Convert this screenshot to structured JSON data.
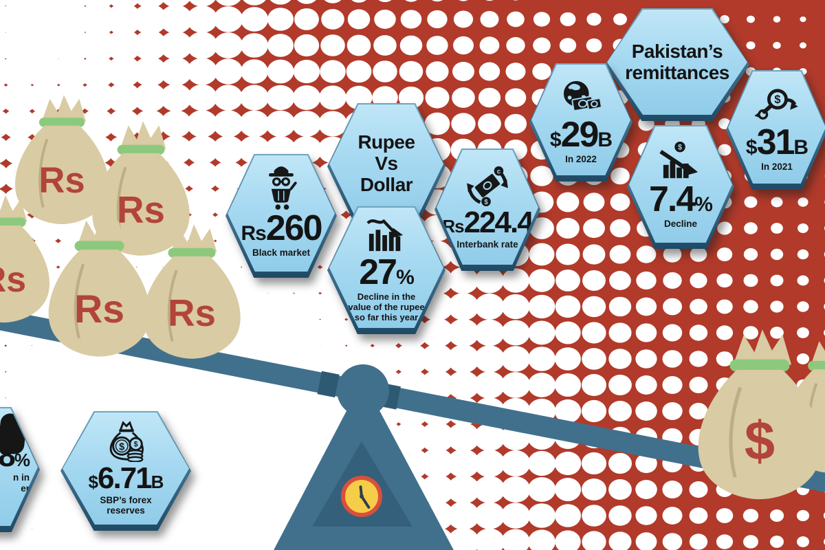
{
  "colors": {
    "background_red": "#b13a2a",
    "dot_white": "#ffffff",
    "hex_blue": "#a6d9f1",
    "beam_blue": "#41708d",
    "bag_tan": "#d9cba3",
    "bag_text_red": "#b2443a",
    "tie_green": "#8cc97d",
    "clock_face_yellow": "#f6cd48",
    "clock_ring_red": "#d94f3c",
    "text_black": "#141414"
  },
  "clusters": {
    "remittances": {
      "title": "Pakistan’s\nremittances",
      "tiles": [
        {
          "icon": "globe-banknotes-icon",
          "prefix": "$",
          "value": "29",
          "suffix": "B",
          "label": "In 2022"
        },
        {
          "icon": "declining-chart-dollar-icon",
          "prefix": "",
          "value": "7.4",
          "suffix": "%",
          "label": "Decline"
        },
        {
          "icon": "magnifier-dollar-icon",
          "prefix": "$",
          "value": "31",
          "suffix": "B",
          "label": "In 2021"
        }
      ]
    },
    "rupee_vs_dollar": {
      "title": "Rupee\nVs\nDollar",
      "tiles": [
        {
          "icon": "incognito-cart-icon",
          "prefix": "Rs",
          "value": "260",
          "suffix": "",
          "label": "Black market"
        },
        {
          "icon": "declining-bars-icon",
          "prefix": "",
          "value": "27",
          "suffix": "%",
          "label": "Decline in the\nvalue of the rupee\nso far this year"
        },
        {
          "icon": "currency-exchange-icon",
          "prefix": "Rs",
          "value": "224.4",
          "suffix": "",
          "label": "Interbank rate"
        }
      ]
    },
    "reserves": {
      "tiles": [
        {
          "icon": "partial-icon",
          "prefix": "",
          "value": "8",
          "suffix": "%",
          "label": "n in\ner"
        },
        {
          "icon": "money-bag-coins-icon",
          "prefix": "$",
          "value": "6.71",
          "suffix": "B",
          "label": "SBP’s forex\nreserves"
        }
      ]
    }
  },
  "scale": {
    "rupee_bag_label": "Rs",
    "dollar_bag_label": "$"
  }
}
